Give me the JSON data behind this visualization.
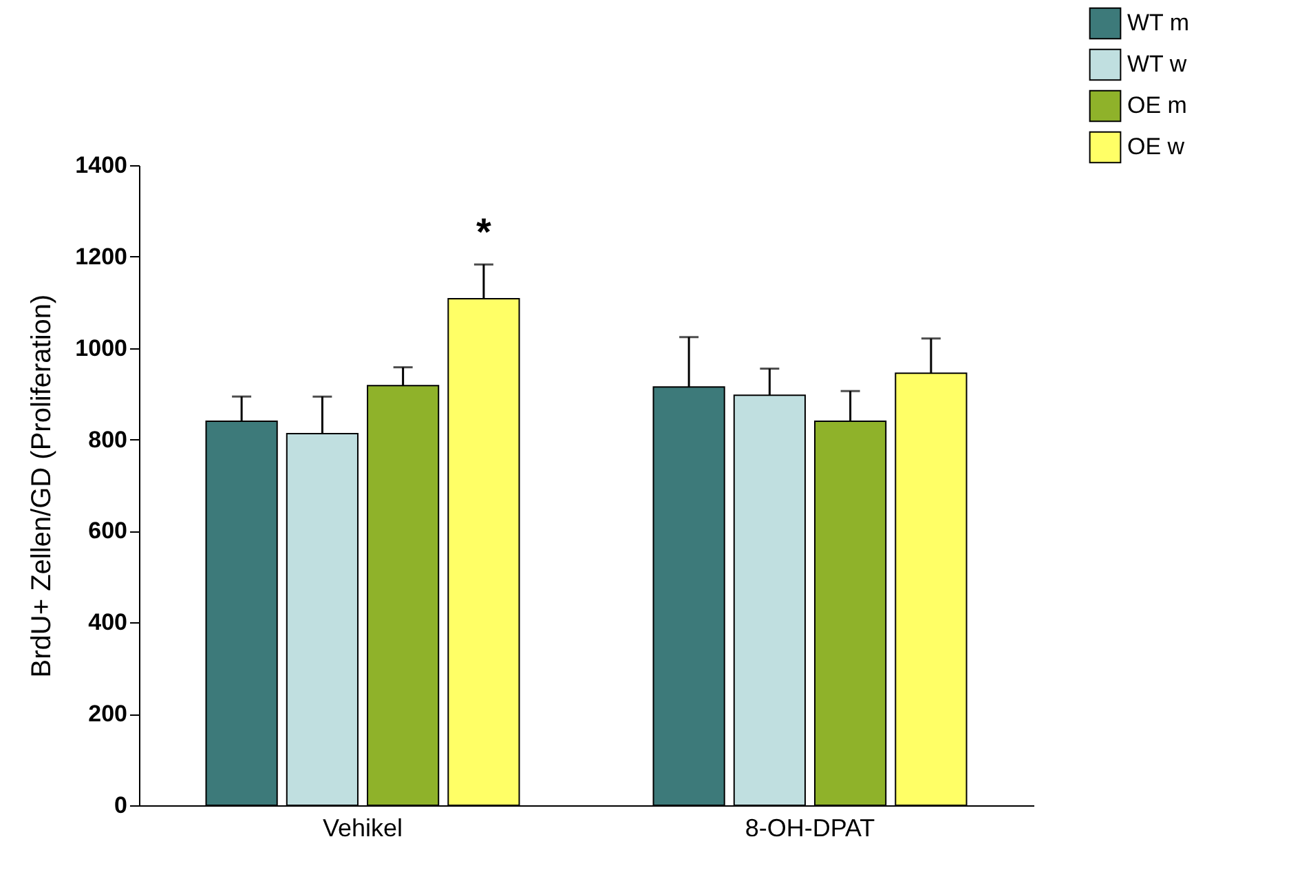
{
  "chart_data": {
    "type": "bar",
    "ylabel": "BrdU+ Zellen/GD (Proliferation)",
    "categories": [
      "Vehikel",
      "8-OH-DPAT"
    ],
    "series": [
      {
        "name": "WT m",
        "color": "#3d7a7a",
        "values": [
          840,
          915
        ],
        "errors": [
          [
            840,
            894
          ],
          [
            915,
            1024
          ]
        ]
      },
      {
        "name": "WT w",
        "color": "#c0dfe0",
        "values": [
          813,
          897
        ],
        "errors": [
          [
            813,
            894
          ],
          [
            897,
            955
          ]
        ]
      },
      {
        "name": "OE m",
        "color": "#8fb22a",
        "values": [
          918,
          840
        ],
        "errors": [
          [
            918,
            958
          ],
          [
            840,
            906
          ]
        ]
      },
      {
        "name": "OE w",
        "color": "#ffff66",
        "values": [
          1108,
          945
        ],
        "errors": [
          [
            1108,
            1183
          ],
          [
            945,
            1021
          ]
        ]
      }
    ],
    "ylim": [
      0,
      1400
    ],
    "yticks": [
      0,
      200,
      400,
      600,
      800,
      1000,
      1200,
      1400
    ],
    "grid": false,
    "legend": "top right",
    "annotations": [
      "*"
    ]
  }
}
